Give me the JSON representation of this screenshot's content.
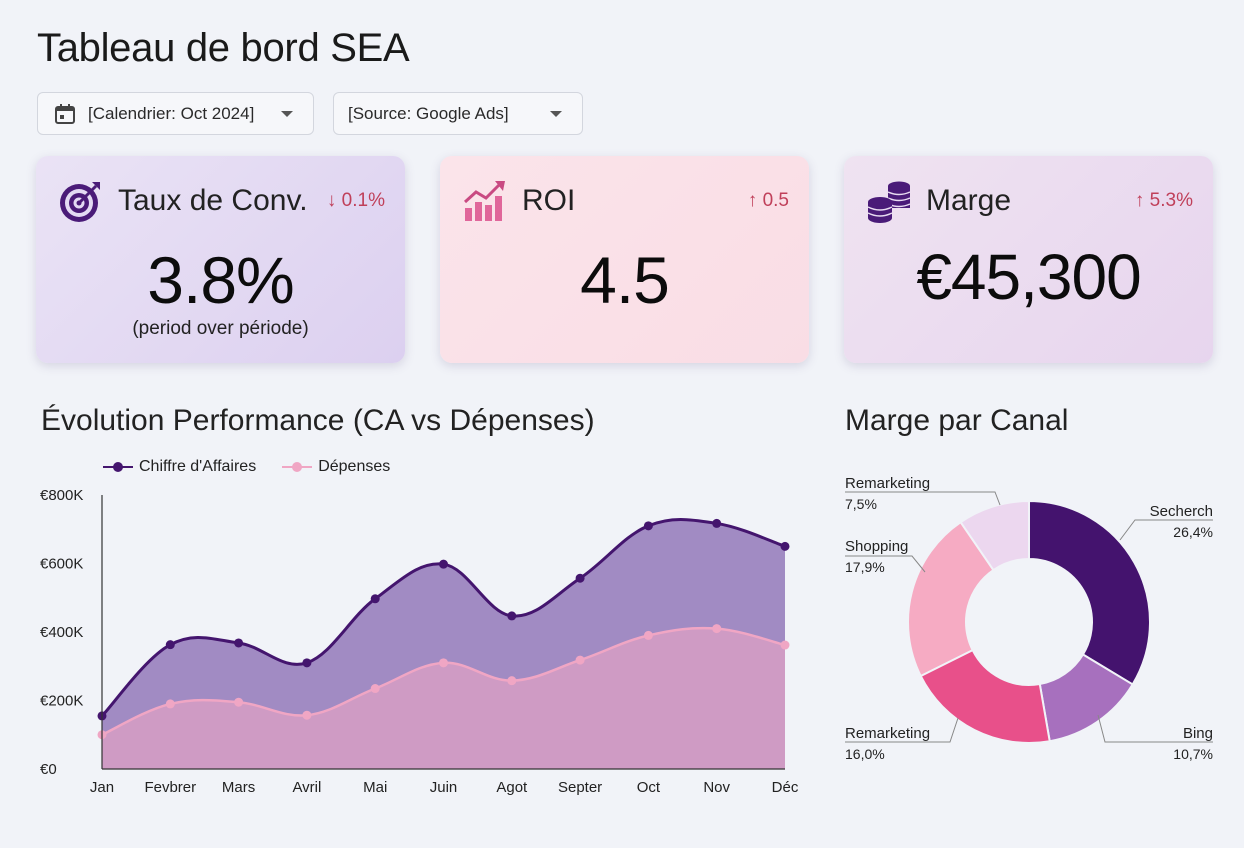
{
  "header": {
    "title": "Tableau de bord SEA"
  },
  "filters": {
    "date": {
      "label": "[Calendrier: Oct 2024]",
      "icon": "calendar-icon"
    },
    "source": {
      "label": "[Source: Google Ads]"
    }
  },
  "kpis": {
    "conv": {
      "title": "Taux de Conv.",
      "delta": "↓ 0.1%",
      "value": "3.8%",
      "subtitle": "(period over période)",
      "icon": "target-icon"
    },
    "roi": {
      "title": "ROI",
      "delta": "↑ 0.5",
      "value": "4.5",
      "icon": "growth-chart-icon"
    },
    "marge": {
      "title": "Marge",
      "delta": "↑ 5.3%",
      "value": "€45,300",
      "icon": "coins-icon"
    }
  },
  "colors": {
    "ca": "#44156e",
    "depenses": "#f0a6c4",
    "ca_fill": "#9c85c0",
    "dep_fill": "#d79dc4",
    "delta": "#c0405a"
  },
  "line_section": {
    "title": "Évolution Performance (CA vs Dépenses)"
  },
  "donut_section": {
    "title": "Marge par Canal"
  },
  "chart_data": [
    {
      "type": "area",
      "title": "Évolution Performance (CA vs Dépenses)",
      "categories": [
        "Jan",
        "Fevbrer",
        "Mars",
        "Avril",
        "Mai",
        "Juin",
        "Agot",
        "Septer",
        "Oct",
        "Nov",
        "Déc"
      ],
      "series": [
        {
          "name": "Chiffre d'Affaires",
          "values": [
            155,
            363,
            368,
            310,
            497,
            598,
            447,
            557,
            710,
            717,
            650
          ]
        },
        {
          "name": "Dépenses",
          "values": [
            100,
            190,
            195,
            157,
            235,
            310,
            258,
            318,
            390,
            410,
            362
          ]
        }
      ],
      "yticks": [
        "€0",
        "€200K",
        "€400K",
        "€600K",
        "€800K"
      ],
      "ylim": [
        0,
        800
      ],
      "grid": false,
      "legend": "top-left"
    },
    {
      "type": "pie",
      "title": "Marge par Canal",
      "donut": true,
      "slices": [
        {
          "name": "Secherch",
          "label": "26,4%",
          "value": 26.4,
          "color": "#44136e"
        },
        {
          "name": "Bing",
          "label": "10,7%",
          "value": 10.7,
          "color": "#a770be"
        },
        {
          "name": "Remarketing",
          "label": "16,0%",
          "value": 16.0,
          "color": "#e8508a"
        },
        {
          "name": "Shopping",
          "label": "17,9%",
          "value": 17.9,
          "color": "#f6abc3"
        },
        {
          "name": "Remarketing",
          "label": "7,5%",
          "value": 7.5,
          "color": "#ecd7ef"
        }
      ]
    }
  ]
}
